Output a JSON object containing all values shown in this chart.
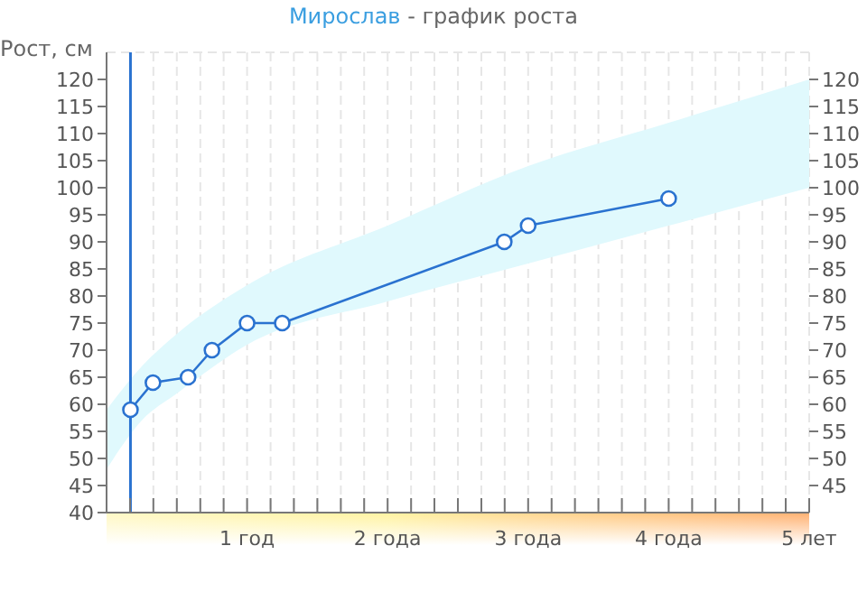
{
  "chart_data": {
    "type": "line",
    "title": "Мирослав - график роста",
    "ylabel": "Рост, см",
    "xlim": [
      0,
      5
    ],
    "xticks": [
      {
        "value": 0,
        "label": null
      },
      {
        "value": 0.167,
        "label": null
      },
      {
        "value": 0.333,
        "label": null
      },
      {
        "value": 0.5,
        "label": null
      },
      {
        "value": 0.667,
        "label": null
      },
      {
        "value": 0.833,
        "label": null
      },
      {
        "value": 1,
        "label": "1 год"
      },
      {
        "value": 1.167,
        "label": null
      },
      {
        "value": 1.333,
        "label": null
      },
      {
        "value": 1.5,
        "label": null
      },
      {
        "value": 1.667,
        "label": null
      },
      {
        "value": 1.833,
        "label": null
      },
      {
        "value": 2,
        "label": "2 года"
      },
      {
        "value": 2.167,
        "label": null
      },
      {
        "value": 2.333,
        "label": null
      },
      {
        "value": 2.5,
        "label": null
      },
      {
        "value": 2.667,
        "label": null
      },
      {
        "value": 2.833,
        "label": null
      },
      {
        "value": 3,
        "label": "3 года"
      },
      {
        "value": 3.167,
        "label": null
      },
      {
        "value": 3.333,
        "label": null
      },
      {
        "value": 3.5,
        "label": null
      },
      {
        "value": 3.667,
        "label": null
      },
      {
        "value": 3.833,
        "label": null
      },
      {
        "value": 4,
        "label": "4 года"
      },
      {
        "value": 4.167,
        "label": null
      },
      {
        "value": 4.333,
        "label": null
      },
      {
        "value": 4.5,
        "label": null
      },
      {
        "value": 4.667,
        "label": null
      },
      {
        "value": 4.833,
        "label": null
      },
      {
        "value": 5,
        "label": "5 лет"
      }
    ],
    "ylim": [
      40,
      125
    ],
    "yticks": [
      40,
      45,
      50,
      55,
      60,
      65,
      70,
      75,
      80,
      85,
      90,
      95,
      100,
      105,
      110,
      115,
      120
    ],
    "y2lim": [
      40,
      125
    ],
    "y2ticks": [
      45,
      50,
      55,
      60,
      65,
      70,
      75,
      80,
      85,
      90,
      95,
      100,
      105,
      110,
      115,
      120
    ],
    "grid": true,
    "legend": false,
    "marker": "circle",
    "line_style": "solid",
    "ref_lines": [
      {
        "axis": "x",
        "value": 0.17,
        "color": "#2a72d0"
      }
    ],
    "series": [
      {
        "type": "area",
        "color": "#e0f9fd",
        "x": [
          0,
          0.25,
          0.5,
          1,
          2,
          3,
          4,
          5
        ],
        "values": [
          null,
          null,
          null,
          null,
          null,
          null,
          null,
          null
        ],
        "lower": [
          48,
          57,
          62,
          71,
          79,
          86,
          93,
          100
        ],
        "upper": [
          59,
          67,
          73,
          82,
          93,
          104,
          112,
          120
        ]
      },
      {
        "color": "#2a72d0",
        "x": [
          0.17,
          0.33,
          0.58,
          0.75,
          1,
          1.25,
          2.83,
          3,
          4
        ],
        "values": [
          59,
          64,
          65,
          70,
          75,
          75,
          90,
          93,
          98
        ]
      }
    ]
  }
}
